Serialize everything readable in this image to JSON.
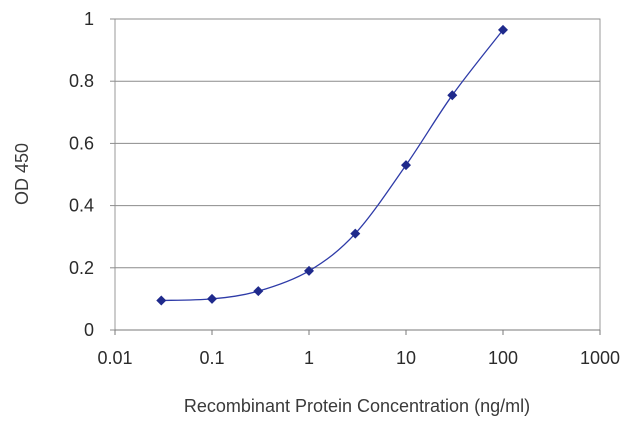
{
  "chart_data": {
    "type": "scatter",
    "xscale": "log",
    "xlabel": "Recombinant Protein Concentration (ng/ml)",
    "ylabel": "OD 450",
    "xlim": [
      0.01,
      1000
    ],
    "ylim": [
      0,
      1
    ],
    "x_ticks": [
      "0.01",
      "0.1",
      "1",
      "10",
      "100",
      "1000"
    ],
    "y_ticks": [
      "0",
      "0.2",
      "0.4",
      "0.6",
      "0.8",
      "1"
    ],
    "grid": "horizontal",
    "legend": "none",
    "series": [
      {
        "color": "#1f2a8c",
        "marker": "diamond",
        "fit": "smooth-curve",
        "points": [
          {
            "x": 0.03,
            "y": 0.095
          },
          {
            "x": 0.1,
            "y": 0.1
          },
          {
            "x": 0.3,
            "y": 0.125
          },
          {
            "x": 1,
            "y": 0.19
          },
          {
            "x": 3,
            "y": 0.31
          },
          {
            "x": 10,
            "y": 0.53
          },
          {
            "x": 30,
            "y": 0.755
          },
          {
            "x": 100,
            "y": 0.965
          }
        ]
      }
    ]
  }
}
